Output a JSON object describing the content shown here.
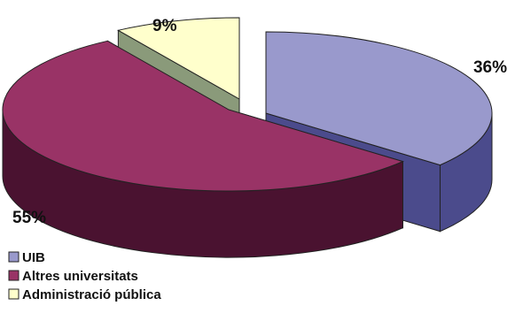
{
  "chart_data": {
    "type": "pie",
    "title": "",
    "three_d": true,
    "exploded": true,
    "slices": [
      {
        "label": "UIB",
        "value": 36,
        "display": "36%",
        "color_top": "#9999cc",
        "color_side": "#4b4b8c"
      },
      {
        "label": "Altres universitats",
        "value": 55,
        "display": "55%",
        "color_top": "#993366",
        "color_side": "#4a1230"
      },
      {
        "label": "Administració pública",
        "value": 9,
        "display": "9%",
        "color_top": "#ffffcc",
        "color_side": "#8a9a7a"
      }
    ],
    "legend": {
      "position": "bottom-left",
      "items": [
        "UIB",
        "Altres universitats",
        "Administració pública"
      ]
    }
  }
}
